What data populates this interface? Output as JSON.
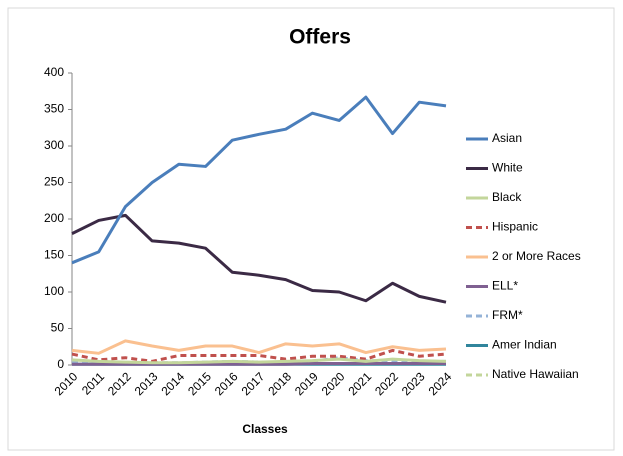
{
  "chart_data": {
    "type": "line",
    "title": "Offers",
    "x_label": "Classes",
    "categories": [
      "2010",
      "2011",
      "2012",
      "2013",
      "2014",
      "2015",
      "2016",
      "2017",
      "2018",
      "2019",
      "2020",
      "2021",
      "2022",
      "2023",
      "2024"
    ],
    "series": [
      {
        "name": "Asian",
        "color": "#4a7ebb",
        "dashed": false,
        "values": [
          140,
          155,
          217,
          250,
          275,
          272,
          308,
          316,
          323,
          345,
          335,
          367,
          317,
          360,
          355
        ]
      },
      {
        "name": "White",
        "color": "#3b2a45",
        "dashed": false,
        "values": [
          180,
          198,
          205,
          170,
          167,
          160,
          127,
          123,
          117,
          102,
          100,
          88,
          112,
          94,
          86
        ]
      },
      {
        "name": "Black",
        "color": "#c3d69b",
        "dashed": false,
        "values": [
          7,
          5,
          4,
          3,
          3,
          4,
          5,
          4,
          5,
          6,
          8,
          5,
          8,
          6,
          5
        ]
      },
      {
        "name": "Hispanic",
        "color": "#c0504d",
        "dashed": true,
        "values": [
          15,
          7,
          10,
          5,
          13,
          13,
          13,
          13,
          8,
          12,
          12,
          8,
          20,
          12,
          15
        ]
      },
      {
        "name": "2 or More Races",
        "color": "#fac090",
        "dashed": false,
        "values": [
          20,
          16,
          33,
          26,
          20,
          26,
          26,
          17,
          29,
          26,
          29,
          17,
          25,
          20,
          22
        ]
      },
      {
        "name": "ELL*",
        "color": "#7f6091",
        "dashed": false,
        "values": [
          1,
          1,
          1,
          1,
          1,
          1,
          1,
          1,
          1,
          2,
          2,
          2,
          2,
          2,
          2
        ]
      },
      {
        "name": "FRM*",
        "color": "#95b3d7",
        "dashed": true,
        "values": [
          5,
          4,
          3,
          3,
          3,
          4,
          5,
          4,
          3,
          5,
          10,
          6,
          5,
          5,
          5
        ]
      },
      {
        "name": "Amer Indian",
        "color": "#31859c",
        "dashed": false,
        "values": [
          1,
          1,
          1,
          1,
          1,
          1,
          1,
          1,
          1,
          1,
          1,
          1,
          1,
          1,
          1
        ]
      },
      {
        "name": "Native Hawaiian",
        "color": "#c3d69b",
        "dashed": true,
        "values": [
          2,
          2,
          2,
          2,
          2,
          2,
          2,
          2,
          2,
          2,
          2,
          2,
          2,
          2,
          2
        ]
      }
    ],
    "ylim": [
      0,
      400
    ],
    "yticks": [
      0,
      50,
      100,
      150,
      200,
      250,
      300,
      350,
      400
    ],
    "grid": false,
    "legend": "right"
  }
}
